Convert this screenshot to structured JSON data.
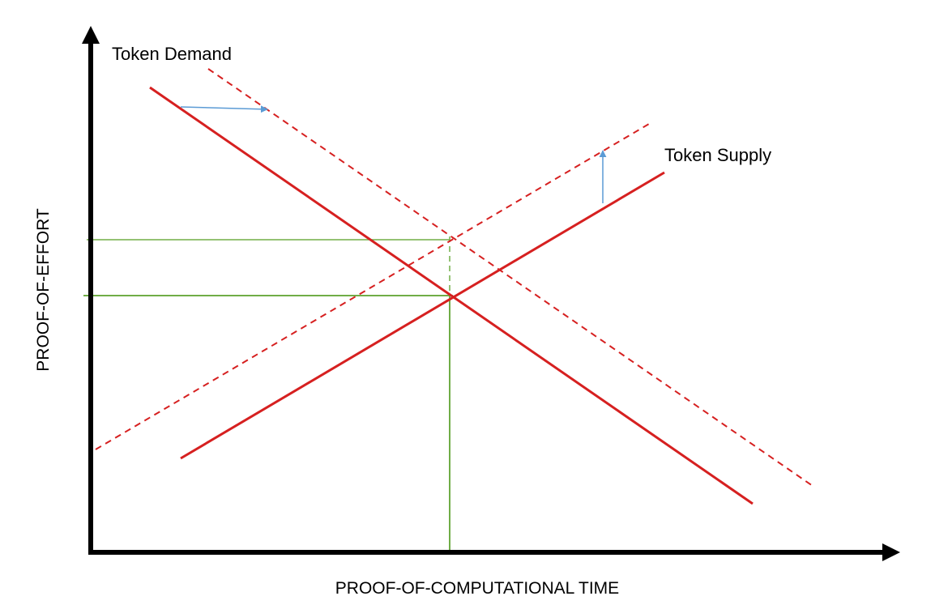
{
  "labels": {
    "demand": "Token Demand",
    "supply": "Token Supply",
    "y_axis": "PROOF-OF-EFFORT",
    "x_axis": "PROOF-OF-COMPUTATIONAL TIME"
  },
  "colors": {
    "axis": "#000000",
    "curves": "#d62020",
    "guides": "#70ad47",
    "shift_arrows": "#5b9bd5"
  }
}
